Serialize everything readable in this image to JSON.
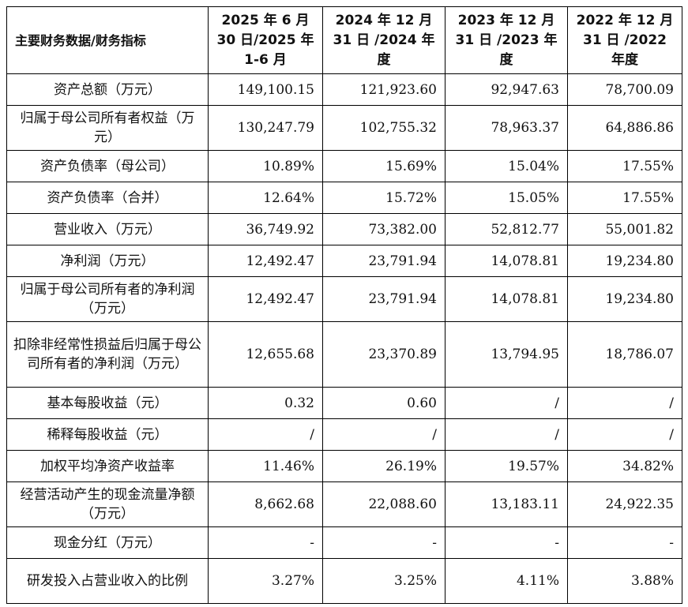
{
  "table": {
    "header": {
      "label": "主要财务数据/财务指标",
      "columns": [
        "2025 年 6 月 30 日/2025 年 1-6 月",
        "2024 年 12 月 31 日 /2024 年度",
        "2023 年 12 月 31 日 /2023 年度",
        "2022 年 12 月 31 日 /2022 年度"
      ]
    },
    "rows": [
      {
        "label": "资产总额（万元）",
        "values": [
          "149,100.15",
          "121,923.60",
          "92,947.63",
          "78,700.09"
        ]
      },
      {
        "label": "归属于母公司所有者权益（万元）",
        "values": [
          "130,247.79",
          "102,755.32",
          "78,963.37",
          "64,886.86"
        ]
      },
      {
        "label": "资产负债率（母公司）",
        "values": [
          "10.89%",
          "15.69%",
          "15.04%",
          "17.55%"
        ]
      },
      {
        "label": "资产负债率（合并）",
        "values": [
          "12.64%",
          "15.72%",
          "15.05%",
          "17.55%"
        ]
      },
      {
        "label": "营业收入（万元）",
        "values": [
          "36,749.92",
          "73,382.00",
          "52,812.77",
          "55,001.82"
        ]
      },
      {
        "label": "净利润（万元）",
        "values": [
          "12,492.47",
          "23,791.94",
          "14,078.81",
          "19,234.80"
        ]
      },
      {
        "label": "归属于母公司所有者的净利润（万元）",
        "values": [
          "12,492.47",
          "23,791.94",
          "14,078.81",
          "19,234.80"
        ]
      },
      {
        "label": "扣除非经常性损益后归属于母公司所有者的净利润（万元）",
        "values": [
          "12,655.68",
          "23,370.89",
          "13,794.95",
          "18,786.07"
        ]
      },
      {
        "label": "基本每股收益（元）",
        "values": [
          "0.32",
          "0.60",
          "/",
          "/"
        ]
      },
      {
        "label": "稀释每股收益（元）",
        "values": [
          "/",
          "/",
          "/",
          "/"
        ]
      },
      {
        "label": "加权平均净资产收益率",
        "values": [
          "11.46%",
          "26.19%",
          "19.57%",
          "34.82%"
        ]
      },
      {
        "label": "经营活动产生的现金流量净额（万元）",
        "values": [
          "8,662.68",
          "22,088.60",
          "13,183.11",
          "24,922.35"
        ]
      },
      {
        "label": "现金分红（万元）",
        "values": [
          "-",
          "-",
          "-",
          "-"
        ]
      },
      {
        "label": "研发投入占营业收入的比例",
        "values": [
          "3.27%",
          "3.25%",
          "4.11%",
          "3.88%"
        ]
      }
    ]
  }
}
